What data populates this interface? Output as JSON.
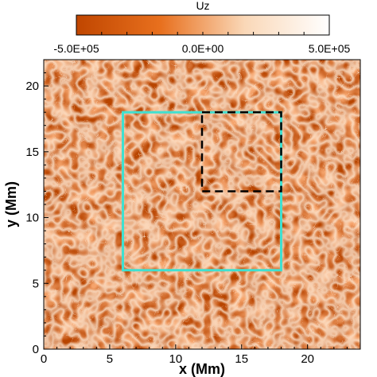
{
  "chart_data": {
    "type": "heatmap",
    "title": "",
    "xlabel": "x (Mm)",
    "ylabel": "y (Mm)",
    "xlim": [
      0,
      24
    ],
    "ylim": [
      0,
      22
    ],
    "xticks": [
      0,
      5,
      10,
      15,
      20
    ],
    "xtick_labels": [
      "0",
      "5",
      "10",
      "15",
      "20"
    ],
    "yticks": [
      0,
      5,
      10,
      15,
      20
    ],
    "ytick_labels": [
      "0",
      "5",
      "10",
      "15",
      "20"
    ],
    "colorbar": {
      "label": "Uz",
      "min": -500000,
      "max": 500000,
      "tick_labels": [
        "-5.0E+05",
        "0.0E+00",
        "5.0E+05"
      ],
      "colors": [
        "#c04600",
        "#e8701e",
        "#fad8b8",
        "#ffffff"
      ],
      "placement": "top"
    },
    "field_colors": {
      "lanes": "#b84400",
      "granules": "#f5a46c",
      "highlights": "#fde7d2"
    },
    "regions": [
      {
        "style": "solid",
        "color": "#40e0d0",
        "x": [
          6,
          18
        ],
        "y": [
          6,
          18
        ]
      },
      {
        "style": "dashed",
        "color": "#000000",
        "x": [
          12,
          18
        ],
        "y": [
          12,
          18
        ]
      }
    ],
    "grid": false
  }
}
